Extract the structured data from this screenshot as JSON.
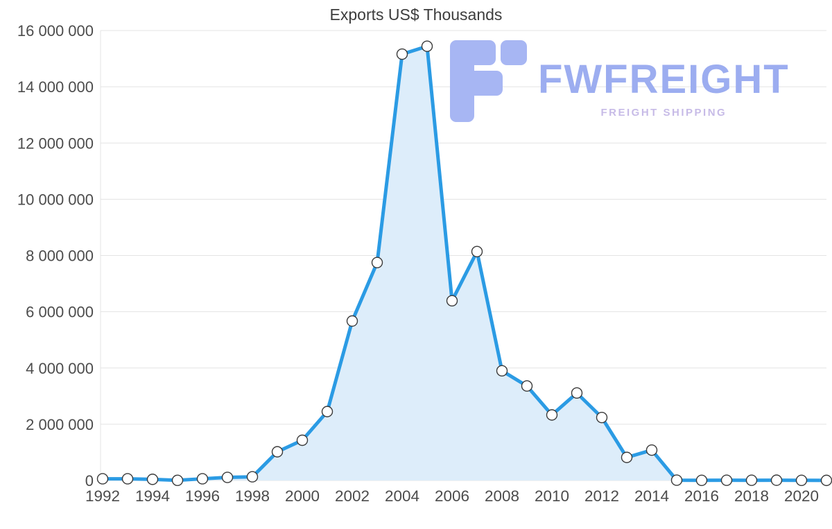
{
  "title": "Exports US$ Thousands",
  "logo": {
    "name": "FWFREIGHT",
    "tagline": "FREIGHT SHIPPING",
    "name_color": "#9cadf0",
    "tagline_color": "#c7bbe7",
    "icon_color": "#a7b6f3"
  },
  "chart_data": {
    "type": "area",
    "title": "Exports US$ Thousands",
    "x": [
      1992,
      1993,
      1994,
      1995,
      1996,
      1997,
      1998,
      1999,
      2000,
      2001,
      2002,
      2003,
      2004,
      2005,
      2006,
      2007,
      2008,
      2009,
      2010,
      2011,
      2012,
      2013,
      2014,
      2015,
      2016,
      2017,
      2018,
      2019,
      2020,
      2021
    ],
    "values": [
      60000,
      60000,
      40000,
      5000,
      60000,
      110000,
      130000,
      1020000,
      1430000,
      2450000,
      5670000,
      7750000,
      15160000,
      15440000,
      6390000,
      8140000,
      3900000,
      3360000,
      2330000,
      3110000,
      2240000,
      820000,
      1080000,
      10000,
      5000,
      8000,
      7000,
      9000,
      5000,
      3000
    ],
    "x_ticks": [
      1992,
      1994,
      1996,
      1998,
      2000,
      2002,
      2004,
      2006,
      2008,
      2010,
      2012,
      2014,
      2016,
      2018,
      2020
    ],
    "x_tick_labels": [
      "1992",
      "1994",
      "1996",
      "1998",
      "2000",
      "2002",
      "2004",
      "2006",
      "2008",
      "2010",
      "2012",
      "2014",
      "2016",
      "2018",
      "2020"
    ],
    "y_ticks": [
      0,
      2000000,
      4000000,
      6000000,
      8000000,
      10000000,
      12000000,
      14000000,
      16000000
    ],
    "y_tick_labels": [
      "0",
      "2 000 000",
      "4 000 000",
      "6 000 000",
      "8 000 000",
      "10 000 000",
      "12 000 000",
      "14 000 000",
      "16 000 000"
    ],
    "ylim": [
      0,
      16000000
    ],
    "grid": "horizontal",
    "legend": "none",
    "line_color": "#2b9be4",
    "fill_color": "#ddedfa",
    "marker": "circle-white",
    "marker_stroke": "#3a3a3a",
    "grid_color": "#e3e3e3",
    "axis_text_color": "#4c4c4c"
  }
}
